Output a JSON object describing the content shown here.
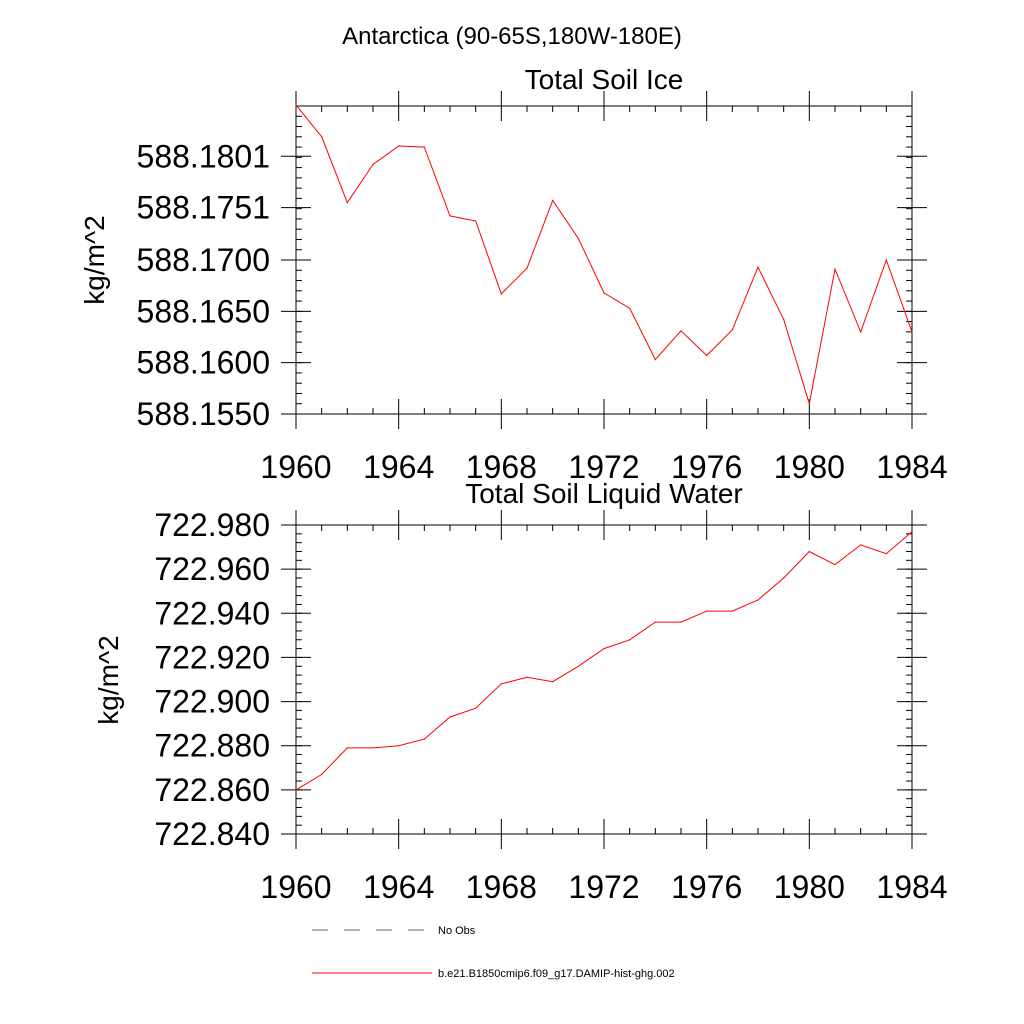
{
  "figure": {
    "title": "Antarctica (90-65S,180W-180E)"
  },
  "legend": {
    "placement": "bottom-left",
    "entries": [
      {
        "label": "No Obs",
        "color": "#5a5a8a",
        "dash": "dashed"
      },
      {
        "label": "b.e21.B1850cmip6.f09_g17.DAMIP-hist-ghg.002",
        "color": "#ff0000",
        "dash": "solid"
      }
    ]
  },
  "chart_data": [
    {
      "type": "line",
      "title": "Total Soil Ice",
      "xlabel": "",
      "ylabel": "kg/m^2",
      "xlim": [
        1960,
        1984
      ],
      "ylim": [
        588.155,
        588.185
      ],
      "x_ticks": [
        1960,
        1964,
        1968,
        1972,
        1976,
        1980,
        1984
      ],
      "y_ticks": [
        "588.1550",
        "588.1600",
        "588.1650",
        "588.1700",
        "588.1751",
        "588.1801"
      ],
      "y_tick_values": [
        588.155,
        588.16,
        588.165,
        588.17,
        588.1751,
        588.1801
      ],
      "grid": false,
      "series": [
        {
          "name": "b.e21.B1850cmip6.f09_g17.DAMIP-hist-ghg.002",
          "color": "#ff0000",
          "x": [
            1960,
            1961,
            1962,
            1963,
            1964,
            1965,
            1966,
            1967,
            1968,
            1969,
            1970,
            1971,
            1972,
            1973,
            1974,
            1975,
            1976,
            1977,
            1978,
            1979,
            1980,
            1981,
            1982,
            1983,
            1984
          ],
          "values": [
            588.1851,
            588.182,
            588.1756,
            588.1793,
            588.1811,
            588.181,
            588.1743,
            588.1738,
            588.1667,
            588.1692,
            588.1758,
            588.1721,
            588.1668,
            588.1653,
            588.1603,
            588.1631,
            588.1607,
            588.1632,
            588.1693,
            588.1642,
            588.156,
            588.1691,
            588.163,
            588.17,
            588.163
          ]
        }
      ]
    },
    {
      "type": "line",
      "title": "Total Soil Liquid Water",
      "xlabel": "",
      "ylabel": "kg/m^2",
      "xlim": [
        1960,
        1984
      ],
      "ylim": [
        722.84,
        722.98
      ],
      "x_ticks": [
        1960,
        1964,
        1968,
        1972,
        1976,
        1980,
        1984
      ],
      "y_ticks": [
        "722.840",
        "722.860",
        "722.880",
        "722.900",
        "722.920",
        "722.940",
        "722.960",
        "722.980"
      ],
      "y_tick_values": [
        722.84,
        722.86,
        722.88,
        722.9,
        722.92,
        722.94,
        722.96,
        722.98
      ],
      "grid": false,
      "series": [
        {
          "name": "b.e21.B1850cmip6.f09_g17.DAMIP-hist-ghg.002",
          "color": "#ff0000",
          "x": [
            1960,
            1961,
            1962,
            1963,
            1964,
            1965,
            1966,
            1967,
            1968,
            1969,
            1970,
            1971,
            1972,
            1973,
            1974,
            1975,
            1976,
            1977,
            1978,
            1979,
            1980,
            1981,
            1982,
            1983,
            1984
          ],
          "values": [
            722.86,
            722.867,
            722.879,
            722.879,
            722.88,
            722.883,
            722.893,
            722.897,
            722.908,
            722.911,
            722.909,
            722.916,
            722.924,
            722.928,
            722.936,
            722.936,
            722.941,
            722.941,
            722.946,
            722.956,
            722.968,
            722.962,
            722.971,
            722.967,
            722.977
          ]
        }
      ]
    }
  ]
}
